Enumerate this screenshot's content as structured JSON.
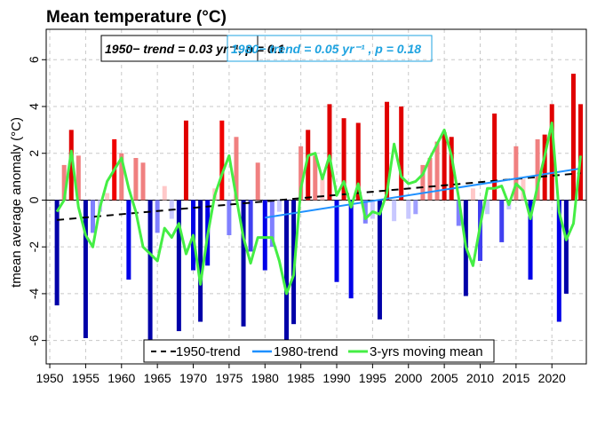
{
  "chart_data": {
    "type": "bar",
    "title": "Mean temperature  (°C)",
    "ylabel": "tmean average anomaly (°C)",
    "xlabel": "",
    "xlim": [
      1949.5,
      2024.8
    ],
    "ylim": [
      -7.0,
      7.3
    ],
    "x_ticks": [
      1950,
      1955,
      1960,
      1965,
      1970,
      1975,
      1980,
      1985,
      1990,
      1995,
      2000,
      2005,
      2010,
      2015,
      2020
    ],
    "y_ticks": [
      -6,
      -4,
      -2,
      0,
      2,
      4,
      6
    ],
    "grid": true,
    "years": [
      1951,
      1952,
      1953,
      1954,
      1955,
      1956,
      1957,
      1958,
      1959,
      1960,
      1961,
      1962,
      1963,
      1964,
      1965,
      1966,
      1967,
      1968,
      1969,
      1970,
      1971,
      1972,
      1973,
      1974,
      1975,
      1976,
      1977,
      1978,
      1979,
      1980,
      1981,
      1982,
      1983,
      1984,
      1985,
      1986,
      1987,
      1988,
      1989,
      1990,
      1991,
      1992,
      1993,
      1994,
      1995,
      1996,
      1997,
      1998,
      1999,
      2000,
      2001,
      2002,
      2003,
      2004,
      2005,
      2006,
      2007,
      2008,
      2009,
      2010,
      2011,
      2012,
      2013,
      2014,
      2015,
      2016,
      2017,
      2018,
      2019,
      2020,
      2021,
      2022,
      2023,
      2024
    ],
    "anomalies": [
      -4.5,
      1.5,
      3.0,
      1.9,
      -5.9,
      -1.4,
      -0.5,
      0.3,
      2.6,
      2.0,
      -3.4,
      1.8,
      1.6,
      -6.8,
      -1.4,
      0.6,
      -0.8,
      -5.6,
      3.4,
      -3.0,
      -5.2,
      -2.8,
      0.5,
      3.4,
      -1.5,
      2.7,
      -5.4,
      -2.2,
      1.6,
      -3.0,
      -2.0,
      -0.5,
      -6.9,
      -5.3,
      2.3,
      3.0,
      1.9,
      1.0,
      4.1,
      -3.5,
      3.5,
      -4.2,
      3.3,
      -1.0,
      -0.8,
      -5.1,
      4.2,
      -0.9,
      4.0,
      -0.8,
      -0.6,
      1.5,
      1.8,
      2.5,
      2.9,
      2.7,
      -1.1,
      -4.1,
      0.5,
      -2.6,
      -0.6,
      3.7,
      -1.8,
      -0.4,
      2.3,
      0.9,
      -3.4,
      2.6,
      2.8,
      4.1,
      -5.2,
      -4.0,
      5.4,
      4.1
    ],
    "bar_colors": [
      "#0000a8",
      "#f08080",
      "#e00000",
      "#f08080",
      "#0000a8",
      "#8080ff",
      "#c8c8ff",
      "#ffc8c8",
      "#f00000",
      "#f08080",
      "#0000e8",
      "#f08080",
      "#f08080",
      "#0000a8",
      "#8080ff",
      "#ffc8c8",
      "#c8c8ff",
      "#0000a8",
      "#e00000",
      "#0000e8",
      "#0000a8",
      "#0000e8",
      "#ffc8c8",
      "#f00000",
      "#8080ff",
      "#f08080",
      "#0000a8",
      "#4040f0",
      "#f08080",
      "#0000e8",
      "#8080ff",
      "#c8c8ff",
      "#0000a8",
      "#0000a8",
      "#f08080",
      "#e00000",
      "#f08080",
      "#ffc8c8",
      "#e00000",
      "#0000e8",
      "#e00000",
      "#0000e8",
      "#e00000",
      "#8080ff",
      "#c8c8ff",
      "#0000a8",
      "#e00000",
      "#c8c8ff",
      "#e00000",
      "#c8c8ff",
      "#a0a0ff",
      "#f08080",
      "#f08080",
      "#f08080",
      "#e00000",
      "#e00000",
      "#8080ff",
      "#0000a8",
      "#ffc8c8",
      "#4040f0",
      "#c8c8ff",
      "#e00000",
      "#4040f0",
      "#c8c8ff",
      "#f08080",
      "#ffc8c8",
      "#0000e8",
      "#f08080",
      "#e00000",
      "#e00000",
      "#0000e8",
      "#0000a8",
      "#e00000",
      "#e00000"
    ],
    "series": [
      {
        "name": "1950-trend",
        "color": "#000000",
        "dash": "8,6",
        "x": [
          1951,
          2024
        ],
        "y": [
          -0.85,
          1.15
        ]
      },
      {
        "name": "1980-trend",
        "color": "#1e90ff",
        "dash": "",
        "x": [
          1980,
          2024
        ],
        "y": [
          -0.75,
          1.35
        ]
      },
      {
        "name": "3-yrs moving mean",
        "color": "#44ee44",
        "dash": "",
        "x": [
          1951,
          1952,
          1953,
          1954,
          1955,
          1956,
          1957,
          1958,
          1959,
          1960,
          1961,
          1962,
          1963,
          1964,
          1965,
          1966,
          1967,
          1968,
          1969,
          1970,
          1971,
          1972,
          1973,
          1974,
          1975,
          1976,
          1977,
          1978,
          1979,
          1980,
          1981,
          1982,
          1983,
          1984,
          1985,
          1986,
          1987,
          1988,
          1989,
          1990,
          1991,
          1992,
          1993,
          1994,
          1995,
          1996,
          1997,
          1998,
          1999,
          2000,
          2001,
          2002,
          2003,
          2004,
          2005,
          2006,
          2007,
          2008,
          2009,
          2010,
          2011,
          2012,
          2013,
          2014,
          2015,
          2016,
          2017,
          2018,
          2019,
          2020,
          2021,
          2022,
          2023,
          2024
        ],
        "y": [
          -0.5,
          0.0,
          2.1,
          -0.3,
          -1.5,
          -2.0,
          -0.3,
          0.8,
          1.3,
          1.8,
          0.5,
          -0.5,
          -2.0,
          -2.3,
          -2.6,
          -1.2,
          -1.6,
          -1.0,
          -2.3,
          -1.5,
          -3.6,
          -1.5,
          0.2,
          1.1,
          1.9,
          0.1,
          -1.6,
          -2.7,
          -1.6,
          -1.6,
          -1.6,
          -2.6,
          -4.0,
          -3.2,
          0.5,
          1.9,
          2.0,
          0.9,
          1.9,
          0.2,
          0.8,
          -0.3,
          0.7,
          -0.8,
          -0.5,
          -0.6,
          0.3,
          2.4,
          1.0,
          0.7,
          0.8,
          1.1,
          1.8,
          2.4,
          3.0,
          1.9,
          0.1,
          -2.0,
          -2.8,
          -1.1,
          0.5,
          0.5,
          0.6,
          -0.2,
          0.7,
          0.4,
          -0.8,
          0.6,
          1.9,
          3.3,
          -0.5,
          -1.7,
          -1.0,
          1.9
        ]
      }
    ],
    "annotations": [
      {
        "text": "1950−  trend = 0.03 yr⁻¹, p = 0.1",
        "color": "#000000"
      },
      {
        "text": "1980−  trend = 0.05 yr⁻¹ , p = 0.18",
        "color": "#1fa3e0"
      }
    ],
    "legend": {
      "position": "bottom-center",
      "entries": [
        "1950-trend",
        "1980-trend",
        "3-yrs moving mean"
      ]
    }
  }
}
